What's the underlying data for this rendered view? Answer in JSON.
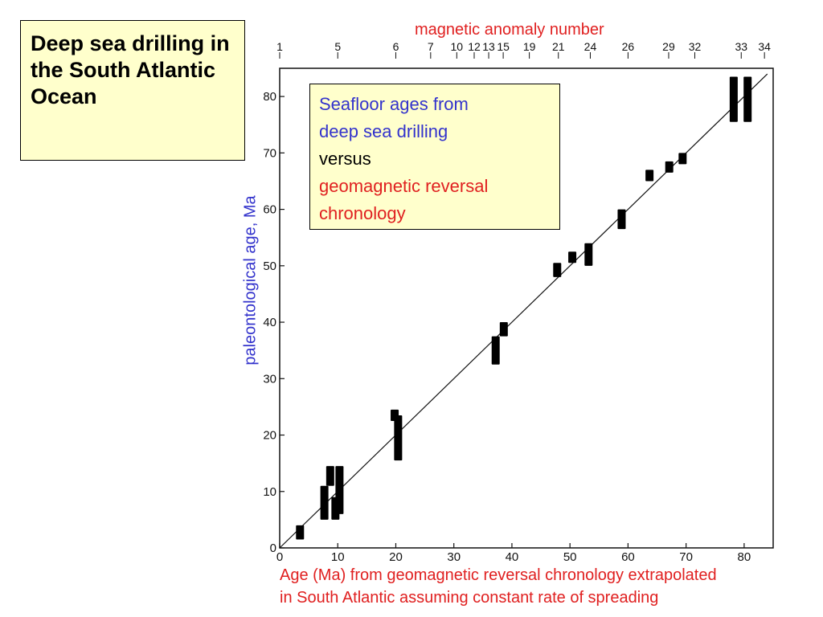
{
  "slide": {
    "title": "Deep sea drilling in the South Atlantic Ocean"
  },
  "legend": {
    "line1": "Seafloor ages from",
    "line2": "deep sea drilling",
    "line3": "versus",
    "line4": "geomagnetic reversal",
    "line5": "chronology"
  },
  "colors": {
    "title_bg": "#ffffcc",
    "blue": "#3333cc",
    "red": "#e02020",
    "marks": "#000000"
  },
  "chart_data": {
    "type": "scatter",
    "top_axis_label": "magnetic anomaly number",
    "xlabel_line1": "Age (Ma) from geomagnetic reversal chronology extrapolated",
    "xlabel_line2": "in South Atlantic assuming constant rate of spreading",
    "ylabel": "paleontological age, Ma",
    "xlim": [
      0,
      85
    ],
    "ylim": [
      0,
      85
    ],
    "x_ticks": [
      0,
      10,
      20,
      30,
      40,
      50,
      60,
      70,
      80
    ],
    "y_ticks": [
      0,
      10,
      20,
      30,
      40,
      50,
      60,
      70,
      80
    ],
    "anomaly_ticks": [
      {
        "label": "1",
        "x": 0
      },
      {
        "label": "5",
        "x": 10
      },
      {
        "label": "6",
        "x": 20
      },
      {
        "label": "7",
        "x": 26
      },
      {
        "label": "10",
        "x": 30.5
      },
      {
        "label": "12",
        "x": 33.5
      },
      {
        "label": "13",
        "x": 36
      },
      {
        "label": "15",
        "x": 38.5
      },
      {
        "label": "19",
        "x": 43
      },
      {
        "label": "21",
        "x": 48
      },
      {
        "label": "24",
        "x": 53.5
      },
      {
        "label": "26",
        "x": 60
      },
      {
        "label": "29",
        "x": 67
      },
      {
        "label": "32",
        "x": 71.5
      },
      {
        "label": "33",
        "x": 79.5
      },
      {
        "label": "34",
        "x": 83.5
      }
    ],
    "reference_line": {
      "from": [
        0,
        0
      ],
      "to": [
        84,
        84
      ]
    },
    "series": [
      {
        "values": [
          {
            "x": 3.5,
            "y_min": 1.5,
            "y_max": 4.0
          },
          {
            "x": 7.7,
            "y_min": 5.0,
            "y_max": 11.0
          },
          {
            "x": 8.7,
            "y_min": 11.0,
            "y_max": 14.5
          },
          {
            "x": 9.6,
            "y_min": 5.0,
            "y_max": 9.0
          },
          {
            "x": 10.3,
            "y_min": 6.0,
            "y_max": 14.5
          },
          {
            "x": 19.8,
            "y_min": 22.5,
            "y_max": 24.5
          },
          {
            "x": 20.4,
            "y_min": 15.5,
            "y_max": 23.5
          },
          {
            "x": 37.2,
            "y_min": 32.5,
            "y_max": 37.5
          },
          {
            "x": 38.6,
            "y_min": 37.5,
            "y_max": 40.0
          },
          {
            "x": 47.8,
            "y_min": 48.0,
            "y_max": 50.5
          },
          {
            "x": 50.4,
            "y_min": 50.5,
            "y_max": 52.5
          },
          {
            "x": 53.2,
            "y_min": 50.0,
            "y_max": 54.0
          },
          {
            "x": 58.9,
            "y_min": 56.5,
            "y_max": 60.0
          },
          {
            "x": 63.7,
            "y_min": 65.0,
            "y_max": 67.0
          },
          {
            "x": 67.1,
            "y_min": 66.5,
            "y_max": 68.5
          },
          {
            "x": 69.4,
            "y_min": 68.0,
            "y_max": 70.0
          },
          {
            "x": 78.2,
            "y_min": 75.5,
            "y_max": 83.5
          },
          {
            "x": 80.6,
            "y_min": 75.5,
            "y_max": 83.5
          }
        ]
      }
    ]
  }
}
